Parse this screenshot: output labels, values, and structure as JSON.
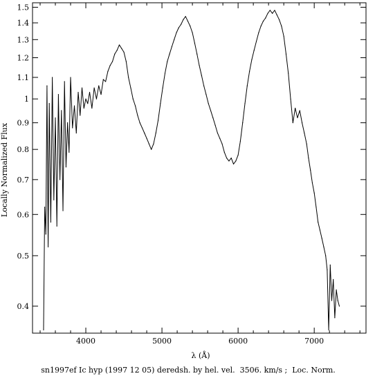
{
  "chart_data": {
    "type": "line",
    "title": "",
    "caption": "sn1997ef Ic hyp (1997 12 05) deredsh. by hel. vel.  3506. km/s ;  Loc. Norm.",
    "xlabel": "λ (Å)",
    "ylabel": "Locally Normalized Flux",
    "xscale": "linear",
    "yscale": "log",
    "xlim": [
      3300,
      7680
    ],
    "ylim": [
      0.355,
      1.53
    ],
    "grid": false,
    "legend": "none",
    "line_color": "#000000",
    "x_ticks": [
      {
        "value": 4000,
        "label": "4000"
      },
      {
        "value": 5000,
        "label": "5000"
      },
      {
        "value": 6000,
        "label": "6000"
      },
      {
        "value": 7000,
        "label": "7000"
      }
    ],
    "y_ticks": [
      {
        "value": 0.4,
        "label": "0.4"
      },
      {
        "value": 0.5,
        "label": "0.5"
      },
      {
        "value": 0.6,
        "label": "0.6"
      },
      {
        "value": 0.7,
        "label": "0.7"
      },
      {
        "value": 0.8,
        "label": "0.8"
      },
      {
        "value": 0.9,
        "label": "0.9"
      },
      {
        "value": 1.0,
        "label": "1"
      },
      {
        "value": 1.1,
        "label": "1.1"
      },
      {
        "value": 1.2,
        "label": "1.2"
      },
      {
        "value": 1.3,
        "label": "1.3"
      },
      {
        "value": 1.4,
        "label": "1.4"
      },
      {
        "value": 1.5,
        "label": "1.5"
      }
    ],
    "series": [
      {
        "x": [
          3445,
          3460,
          3475,
          3490,
          3505,
          3520,
          3540,
          3560,
          3580,
          3600,
          3620,
          3640,
          3660,
          3680,
          3700,
          3720,
          3740,
          3760,
          3780,
          3800,
          3825,
          3850,
          3875,
          3900,
          3925,
          3950,
          3975,
          4000,
          4025,
          4050,
          4080,
          4110,
          4140,
          4170,
          4200,
          4230,
          4260,
          4290,
          4320,
          4350,
          4380,
          4410,
          4440,
          4470,
          4500,
          4530,
          4560,
          4590,
          4620,
          4650,
          4680,
          4710,
          4740,
          4770,
          4800,
          4830,
          4860,
          4890,
          4920,
          4950,
          4980,
          5010,
          5040,
          5070,
          5100,
          5130,
          5160,
          5190,
          5220,
          5250,
          5280,
          5310,
          5340,
          5370,
          5400,
          5430,
          5460,
          5490,
          5520,
          5550,
          5580,
          5610,
          5640,
          5670,
          5700,
          5730,
          5760,
          5790,
          5820,
          5850,
          5880,
          5910,
          5940,
          5970,
          6000,
          6030,
          6060,
          6090,
          6120,
          6150,
          6180,
          6210,
          6240,
          6270,
          6300,
          6330,
          6360,
          6390,
          6420,
          6450,
          6480,
          6510,
          6540,
          6570,
          6600,
          6630,
          6660,
          6690,
          6720,
          6750,
          6780,
          6810,
          6840,
          6870,
          6900,
          6925,
          6950,
          6975,
          7000,
          7025,
          7050,
          7075,
          7100,
          7125,
          7150,
          7170,
          7190,
          7210,
          7230,
          7250,
          7270,
          7290,
          7310,
          7330
        ],
        "y": [
          0.36,
          0.62,
          0.55,
          1.06,
          0.52,
          0.98,
          0.58,
          1.1,
          0.64,
          0.92,
          0.57,
          1.02,
          0.7,
          0.95,
          0.61,
          1.08,
          0.74,
          0.9,
          0.79,
          1.1,
          0.88,
          0.97,
          0.86,
          1.03,
          0.93,
          1.05,
          0.96,
          1.0,
          0.98,
          1.03,
          0.96,
          1.05,
          1.0,
          1.06,
          1.02,
          1.09,
          1.08,
          1.13,
          1.16,
          1.18,
          1.22,
          1.24,
          1.27,
          1.25,
          1.23,
          1.18,
          1.1,
          1.05,
          1.0,
          0.97,
          0.93,
          0.9,
          0.88,
          0.86,
          0.84,
          0.82,
          0.8,
          0.82,
          0.86,
          0.91,
          0.98,
          1.05,
          1.12,
          1.18,
          1.22,
          1.26,
          1.3,
          1.34,
          1.37,
          1.39,
          1.42,
          1.44,
          1.41,
          1.38,
          1.34,
          1.28,
          1.22,
          1.16,
          1.11,
          1.06,
          1.02,
          0.98,
          0.95,
          0.92,
          0.89,
          0.86,
          0.84,
          0.82,
          0.79,
          0.77,
          0.76,
          0.77,
          0.75,
          0.76,
          0.78,
          0.83,
          0.9,
          0.98,
          1.06,
          1.13,
          1.19,
          1.24,
          1.29,
          1.34,
          1.38,
          1.41,
          1.43,
          1.46,
          1.48,
          1.46,
          1.48,
          1.45,
          1.42,
          1.38,
          1.32,
          1.22,
          1.12,
          1.0,
          0.9,
          0.96,
          0.92,
          0.95,
          0.9,
          0.86,
          0.82,
          0.77,
          0.73,
          0.69,
          0.66,
          0.62,
          0.58,
          0.56,
          0.54,
          0.52,
          0.5,
          0.47,
          0.36,
          0.48,
          0.41,
          0.45,
          0.38,
          0.43,
          0.41,
          0.4
        ]
      }
    ]
  }
}
